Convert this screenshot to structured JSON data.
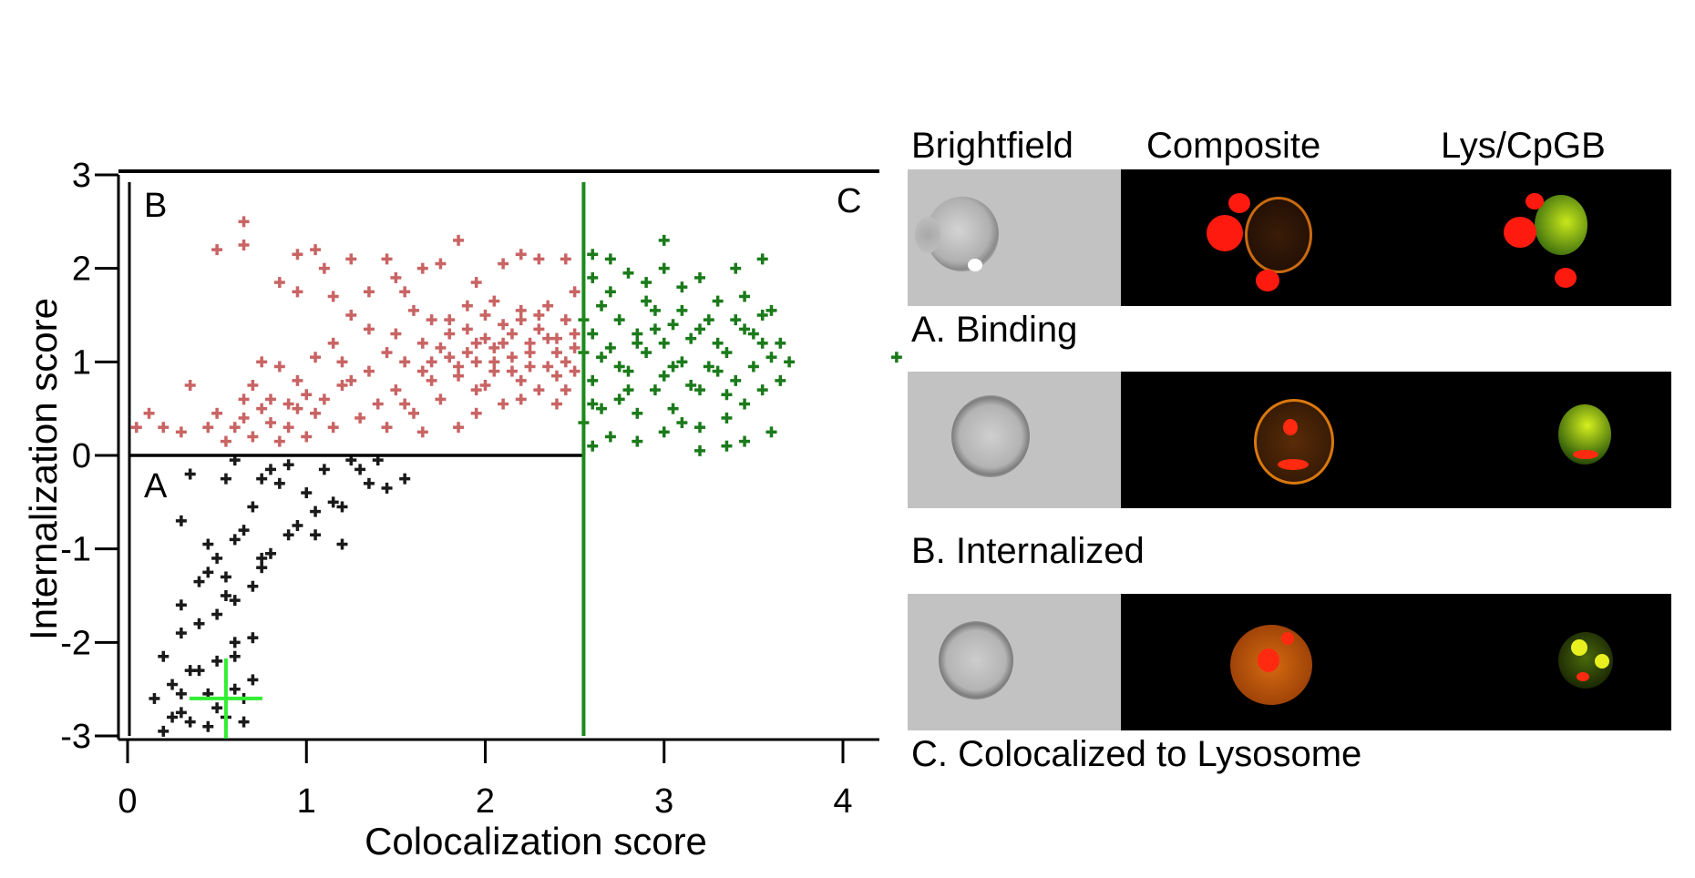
{
  "chart_data": {
    "type": "scatter",
    "xlabel": "Colocalization score",
    "ylabel": "Internalization score",
    "xlim": [
      0,
      4.2
    ],
    "ylim": [
      -3,
      3
    ],
    "x_ticks": [
      "0",
      "1",
      "2",
      "3",
      "4"
    ],
    "y_ticks": [
      "3",
      "2",
      "1",
      "0",
      "-1",
      "-2",
      "-3"
    ],
    "gates": {
      "A": "A",
      "B": "B",
      "C": "C",
      "vertical_line_x": 2.55,
      "horizontal_line_y": 0,
      "colors": {
        "A": "#1a1a1a",
        "B": "#c96464",
        "C": "#1b7a1b",
        "gate_line": "#1b8a1b",
        "marker": "#33ee33"
      }
    },
    "marker_point": [
      0.55,
      -2.6
    ],
    "series": [
      {
        "gate": "A",
        "color": "#1a1a1a",
        "points": [
          [
            0.2,
            -2.95
          ],
          [
            0.25,
            -2.8
          ],
          [
            0.3,
            -2.75
          ],
          [
            0.35,
            -2.85
          ],
          [
            0.45,
            -2.9
          ],
          [
            0.5,
            -2.7
          ],
          [
            0.55,
            -2.8
          ],
          [
            0.6,
            -2.5
          ],
          [
            0.65,
            -2.6
          ],
          [
            0.7,
            -2.4
          ],
          [
            0.15,
            -2.6
          ],
          [
            0.25,
            -2.45
          ],
          [
            0.3,
            -2.55
          ],
          [
            0.4,
            -2.3
          ],
          [
            0.5,
            -2.2
          ],
          [
            0.6,
            -2.0
          ],
          [
            0.7,
            -1.95
          ],
          [
            0.2,
            -2.15
          ],
          [
            0.3,
            -1.9
          ],
          [
            0.4,
            -1.8
          ],
          [
            0.5,
            -1.7
          ],
          [
            0.55,
            -1.5
          ],
          [
            0.6,
            -1.55
          ],
          [
            0.7,
            -1.4
          ],
          [
            0.75,
            -1.2
          ],
          [
            0.3,
            -1.6
          ],
          [
            0.4,
            -1.35
          ],
          [
            0.45,
            -1.25
          ],
          [
            0.5,
            -1.1
          ],
          [
            0.6,
            -0.9
          ],
          [
            0.65,
            -0.8
          ],
          [
            0.3,
            -0.7
          ],
          [
            0.45,
            -0.95
          ],
          [
            0.55,
            -1.3
          ],
          [
            0.8,
            -1.05
          ],
          [
            0.9,
            -0.85
          ],
          [
            0.95,
            -0.75
          ],
          [
            1.05,
            -0.6
          ],
          [
            1.15,
            -0.5
          ],
          [
            1.2,
            -0.55
          ],
          [
            1.3,
            -0.15
          ],
          [
            1.35,
            -0.3
          ],
          [
            1.4,
            -0.05
          ],
          [
            1.45,
            -0.35
          ],
          [
            1.55,
            -0.25
          ],
          [
            1.25,
            -0.05
          ],
          [
            1.1,
            -0.15
          ],
          [
            0.8,
            -0.15
          ],
          [
            0.9,
            -0.1
          ],
          [
            0.75,
            -0.25
          ],
          [
            0.85,
            -0.3
          ],
          [
            1.0,
            -0.4
          ],
          [
            0.35,
            -0.2
          ],
          [
            0.55,
            -0.25
          ],
          [
            0.6,
            -0.05
          ],
          [
            1.2,
            -0.95
          ],
          [
            1.05,
            -0.85
          ],
          [
            0.7,
            -0.55
          ],
          [
            0.6,
            -2.15
          ],
          [
            0.35,
            -2.3
          ],
          [
            0.45,
            -2.55
          ],
          [
            0.65,
            -2.85
          ],
          [
            0.75,
            -1.1
          ]
        ]
      },
      {
        "gate": "B",
        "color": "#c96464",
        "points": [
          [
            0.05,
            0.3
          ],
          [
            0.12,
            0.45
          ],
          [
            0.2,
            0.3
          ],
          [
            0.3,
            0.25
          ],
          [
            0.35,
            0.75
          ],
          [
            0.45,
            0.3
          ],
          [
            0.5,
            0.45
          ],
          [
            0.55,
            0.15
          ],
          [
            0.6,
            0.3
          ],
          [
            0.65,
            0.4
          ],
          [
            0.7,
            0.2
          ],
          [
            0.75,
            0.5
          ],
          [
            0.8,
            0.35
          ],
          [
            0.85,
            0.15
          ],
          [
            0.9,
            0.3
          ],
          [
            0.95,
            0.5
          ],
          [
            1.0,
            0.2
          ],
          [
            1.05,
            0.45
          ],
          [
            1.1,
            0.6
          ],
          [
            1.15,
            0.3
          ],
          [
            1.2,
            0.75
          ],
          [
            1.3,
            0.4
          ],
          [
            1.35,
            0.9
          ],
          [
            1.4,
            0.55
          ],
          [
            1.45,
            0.3
          ],
          [
            1.5,
            0.7
          ],
          [
            1.55,
            1.0
          ],
          [
            1.6,
            0.45
          ],
          [
            1.65,
            1.2
          ],
          [
            1.7,
            0.8
          ],
          [
            1.75,
            0.6
          ],
          [
            1.8,
            1.3
          ],
          [
            1.85,
            0.95
          ],
          [
            1.9,
            1.1
          ],
          [
            1.95,
            0.7
          ],
          [
            2.0,
            1.25
          ],
          [
            2.05,
            0.9
          ],
          [
            2.1,
            1.4
          ],
          [
            2.15,
            1.05
          ],
          [
            2.2,
            0.8
          ],
          [
            2.25,
            1.2
          ],
          [
            2.3,
            1.5
          ],
          [
            2.35,
            0.95
          ],
          [
            2.4,
            1.1
          ],
          [
            2.45,
            0.7
          ],
          [
            2.5,
            1.3
          ],
          [
            2.5,
            0.9
          ],
          [
            2.45,
            1.45
          ],
          [
            2.35,
            1.6
          ],
          [
            2.2,
            1.55
          ],
          [
            2.0,
            1.5
          ],
          [
            1.9,
            1.6
          ],
          [
            1.8,
            1.05
          ],
          [
            1.7,
            1.45
          ],
          [
            1.6,
            1.55
          ],
          [
            1.5,
            1.3
          ],
          [
            1.45,
            1.1
          ],
          [
            1.35,
            1.35
          ],
          [
            1.25,
            1.5
          ],
          [
            1.15,
            1.2
          ],
          [
            1.05,
            1.05
          ],
          [
            0.95,
            0.8
          ],
          [
            0.85,
            0.95
          ],
          [
            0.75,
            1.0
          ],
          [
            0.7,
            0.75
          ],
          [
            0.65,
            0.6
          ],
          [
            0.5,
            2.2
          ],
          [
            0.65,
            2.5
          ],
          [
            0.65,
            2.25
          ],
          [
            0.95,
            2.15
          ],
          [
            1.05,
            2.2
          ],
          [
            1.25,
            2.1
          ],
          [
            1.45,
            2.1
          ],
          [
            1.5,
            1.9
          ],
          [
            1.65,
            2.0
          ],
          [
            1.75,
            2.05
          ],
          [
            1.85,
            2.3
          ],
          [
            2.1,
            2.05
          ],
          [
            2.2,
            2.15
          ],
          [
            2.3,
            2.1
          ],
          [
            2.45,
            2.1
          ],
          [
            2.5,
            1.75
          ],
          [
            1.95,
            1.85
          ],
          [
            2.05,
            1.65
          ],
          [
            1.55,
            1.75
          ],
          [
            1.35,
            1.75
          ],
          [
            1.15,
            1.7
          ],
          [
            0.95,
            1.75
          ],
          [
            0.85,
            1.85
          ],
          [
            1.1,
            2.0
          ],
          [
            2.4,
            0.55
          ],
          [
            2.3,
            0.7
          ],
          [
            2.2,
            0.6
          ],
          [
            2.1,
            0.55
          ],
          [
            1.95,
            0.45
          ],
          [
            1.85,
            0.3
          ],
          [
            1.65,
            0.25
          ],
          [
            1.55,
            0.55
          ],
          [
            2.45,
            1.0
          ],
          [
            2.35,
            1.25
          ],
          [
            2.25,
            0.95
          ],
          [
            2.15,
            1.3
          ],
          [
            2.05,
            1.15
          ],
          [
            1.95,
            1.0
          ],
          [
            1.75,
            1.15
          ],
          [
            1.65,
            0.9
          ],
          [
            1.25,
            0.8
          ],
          [
            1.2,
            1.0
          ],
          [
            1.0,
            0.65
          ],
          [
            0.9,
            0.55
          ],
          [
            0.8,
            0.6
          ],
          [
            2.5,
            1.15
          ],
          [
            2.4,
            0.85
          ],
          [
            2.3,
            1.35
          ],
          [
            2.2,
            1.45
          ],
          [
            2.0,
            0.75
          ],
          [
            1.9,
            1.35
          ],
          [
            1.8,
            1.45
          ],
          [
            1.7,
            1.0
          ],
          [
            2.05,
            1.0
          ],
          [
            2.15,
            0.9
          ],
          [
            2.25,
            1.1
          ],
          [
            1.95,
            1.2
          ],
          [
            1.85,
            0.85
          ],
          [
            2.4,
            1.25
          ],
          [
            2.1,
            1.2
          ]
        ]
      },
      {
        "gate": "C",
        "color": "#1b7a1b",
        "points": [
          [
            2.6,
            2.15
          ],
          [
            2.7,
            2.1
          ],
          [
            2.8,
            1.95
          ],
          [
            2.9,
            1.85
          ],
          [
            3.0,
            2.3
          ],
          [
            3.0,
            2.0
          ],
          [
            3.1,
            1.8
          ],
          [
            3.2,
            1.9
          ],
          [
            3.3,
            1.65
          ],
          [
            3.4,
            2.0
          ],
          [
            3.45,
            1.7
          ],
          [
            3.55,
            2.1
          ],
          [
            3.6,
            1.55
          ],
          [
            2.65,
            1.6
          ],
          [
            2.75,
            1.45
          ],
          [
            2.85,
            1.3
          ],
          [
            2.95,
            1.55
          ],
          [
            3.05,
            1.4
          ],
          [
            3.15,
            1.25
          ],
          [
            3.25,
            1.45
          ],
          [
            3.35,
            1.1
          ],
          [
            3.45,
            1.35
          ],
          [
            3.55,
            1.2
          ],
          [
            3.6,
            1.05
          ],
          [
            3.5,
            0.95
          ],
          [
            3.4,
            0.8
          ],
          [
            3.3,
            0.9
          ],
          [
            3.2,
            0.7
          ],
          [
            3.1,
            1.0
          ],
          [
            3.0,
            0.85
          ],
          [
            2.9,
            1.1
          ],
          [
            2.8,
            0.9
          ],
          [
            2.7,
            1.15
          ],
          [
            2.6,
            0.8
          ],
          [
            2.6,
            1.3
          ],
          [
            2.65,
            0.5
          ],
          [
            2.75,
            0.6
          ],
          [
            2.85,
            0.45
          ],
          [
            2.95,
            0.7
          ],
          [
            3.05,
            0.5
          ],
          [
            3.2,
            0.3
          ],
          [
            3.35,
            0.4
          ],
          [
            3.45,
            0.55
          ],
          [
            3.55,
            0.7
          ],
          [
            3.65,
            0.8
          ],
          [
            3.65,
            1.2
          ],
          [
            3.7,
            1.0
          ],
          [
            2.55,
            0.35
          ],
          [
            2.7,
            0.2
          ],
          [
            2.85,
            0.15
          ],
          [
            3.0,
            0.25
          ],
          [
            3.1,
            0.35
          ],
          [
            3.2,
            0.05
          ],
          [
            3.35,
            0.1
          ],
          [
            3.45,
            0.15
          ],
          [
            3.6,
            0.25
          ],
          [
            2.6,
            0.55
          ],
          [
            2.8,
            0.7
          ],
          [
            3.0,
            1.2
          ],
          [
            3.1,
            1.55
          ],
          [
            2.9,
            1.65
          ],
          [
            2.7,
            1.75
          ],
          [
            2.6,
            1.9
          ],
          [
            3.2,
            1.35
          ],
          [
            3.3,
            1.2
          ],
          [
            3.4,
            1.45
          ],
          [
            3.5,
            1.3
          ],
          [
            3.55,
            1.5
          ],
          [
            4.3,
            1.05
          ],
          [
            2.65,
            1.05
          ],
          [
            2.75,
            0.95
          ],
          [
            2.85,
            1.2
          ],
          [
            2.95,
            1.35
          ],
          [
            3.05,
            0.95
          ],
          [
            3.15,
            0.75
          ],
          [
            3.25,
            0.95
          ],
          [
            3.35,
            0.65
          ],
          [
            2.55,
            1.1
          ],
          [
            2.55,
            1.45
          ],
          [
            2.6,
            0.1
          ]
        ]
      }
    ]
  },
  "panels": {
    "headers": [
      "Brightfield",
      "Composite",
      "Lys/CpGB"
    ],
    "rows": [
      {
        "label": "A. Binding"
      },
      {
        "label": "B. Internalized"
      },
      {
        "label": "C. Colocalized to Lysosome"
      }
    ]
  }
}
